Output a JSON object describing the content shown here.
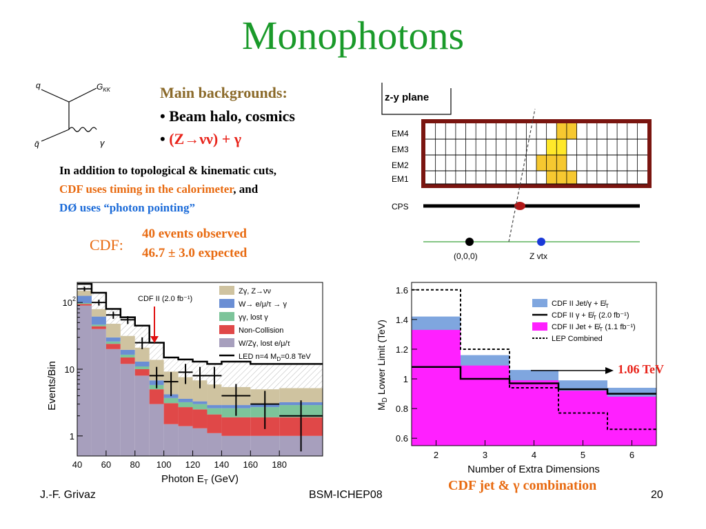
{
  "slide": {
    "title": "Monophotons",
    "backgrounds_title": "Main backgrounds:",
    "bullet1": "• Beam halo, cosmics",
    "bullet2_prefix": "• ",
    "bullet2": "(Z→νν) + γ",
    "text_line1": "In addition to topological & kinematic cuts,",
    "text_line2_orange": "CDF uses timing in the calorimeter",
    "text_line2_rest": ", and",
    "text_line3": "DØ uses “photon pointing”",
    "cdf_label": "CDF:",
    "cdf_observed": "40 events observed",
    "cdf_expected": "46.7 ± 3.0 expected",
    "combo_label": "CDF jet & γ combination",
    "arrow_value": "1.06 TeV",
    "footer_left": "J.-F. Grivaz",
    "footer_center": "BSM-ICHEP08",
    "footer_right": "20"
  },
  "feynman": {
    "q": "q",
    "qbar": "q̄",
    "gkk": "G",
    "gkk_sub": "KK",
    "gamma": "γ"
  },
  "detector": {
    "plane_label": "z-y plane",
    "layers": [
      "EM4",
      "EM3",
      "EM2",
      "EM1"
    ],
    "cps": "CPS",
    "origin": "(0,0,0)",
    "zvtx": "Z vtx"
  },
  "chart_data": [
    {
      "type": "bar",
      "annotation": "CDF II (2.0 fb⁻¹)",
      "xlabel": "Photon E",
      "xlabel_sub": "T",
      "xlabel_unit": " (GeV)",
      "ylabel": "Events/Bin",
      "ytick_labels": [
        [
          "10",
          "2"
        ],
        [
          "10",
          ""
        ],
        [
          "1",
          ""
        ]
      ],
      "xtick_labels": [
        "40",
        "60",
        "80",
        "100",
        "120",
        "140",
        "160",
        "180"
      ],
      "xlim": [
        40,
        210
      ],
      "ylim": [
        0.5,
        200
      ],
      "log_y": true,
      "bin_edges": [
        40,
        50,
        60,
        70,
        80,
        90,
        100,
        110,
        120,
        130,
        140,
        160,
        180,
        210
      ],
      "stack": [
        {
          "name": "W/Zγ, lost e/μ/τ",
          "color": "#a79fbd",
          "values": [
            90,
            40,
            20,
            12,
            8,
            3,
            1.5,
            1.4,
            1.3,
            1.1,
            1.0,
            1.0,
            1.0
          ]
        },
        {
          "name": "Non-Collision",
          "color": "#e04848",
          "values": [
            5,
            4,
            4,
            3,
            2,
            2,
            1.6,
            1.3,
            1.2,
            1.0,
            0.9,
            0.9,
            0.9
          ]
        },
        {
          "name": "γγ, lost γ",
          "color": "#7cc49a",
          "values": [
            3,
            2.5,
            2,
            1.5,
            1,
            0.8,
            0.6,
            0.5,
            0.5,
            0.5,
            0.7,
            0.8,
            1.0
          ]
        },
        {
          "name": "W→ e/μ/τ → γ",
          "color": "#6a8ed4",
          "values": [
            28,
            15,
            4,
            3,
            2,
            1,
            0.5,
            0.4,
            0.3,
            0.3,
            0.3,
            0.3,
            0.3
          ]
        },
        {
          "name": "Zγ, Z→νν",
          "color": "#cfc3a0",
          "values": [
            24,
            18,
            18,
            12,
            8,
            7,
            5,
            4,
            3.5,
            3,
            2.5,
            2,
            2
          ]
        }
      ],
      "led_line": {
        "name": "LED n=4 M",
        "name_sub": "D",
        "name_tail": "=0.8 TeV",
        "values": [
          190,
          140,
          80,
          60,
          45,
          25,
          15,
          14,
          13,
          12,
          13,
          12,
          12
        ]
      },
      "data_points": {
        "x": [
          45,
          55,
          65,
          75,
          85,
          95,
          105,
          115,
          125,
          135,
          150,
          170,
          195
        ],
        "y": [
          160,
          100,
          65,
          55,
          25,
          8,
          6.5,
          9,
          8,
          8,
          4,
          3,
          2
        ]
      }
    },
    {
      "type": "bar",
      "xlabel": "Number of Extra Dimensions",
      "ylabel": "M",
      "ylabel_sub": "D",
      "ylabel_tail": " Lower Limit (TeV)",
      "categories": [
        "2",
        "3",
        "4",
        "5",
        "6"
      ],
      "ylim": [
        0.55,
        1.65
      ],
      "ytick_labels": [
        "0.6",
        "0.8",
        "1",
        "1.2",
        "1.4",
        "1.6"
      ],
      "series": [
        {
          "name": "CDF II Jet/γ + E̸",
          "name_sub": "T",
          "color": "#7fa6df",
          "values": [
            1.42,
            1.16,
            1.06,
            0.99,
            0.94
          ]
        },
        {
          "name": "CDF II Jet + E̸",
          "name_sub": "T",
          "name_tail": " (1.1 fb⁻¹)",
          "color": "#ff20ff",
          "values": [
            1.33,
            1.09,
            0.99,
            0.92,
            0.88
          ]
        },
        {
          "name": "CDF II γ + E̸",
          "name_sub": "T",
          "name_tail": "  (2.0 fb⁻¹)",
          "color": "#000000",
          "values": [
            1.08,
            1.0,
            0.97,
            0.93,
            0.9
          ]
        },
        {
          "name": "LEP Combined",
          "color": "#000000",
          "values": [
            1.6,
            1.2,
            0.94,
            0.77,
            0.66
          ]
        }
      ]
    }
  ]
}
